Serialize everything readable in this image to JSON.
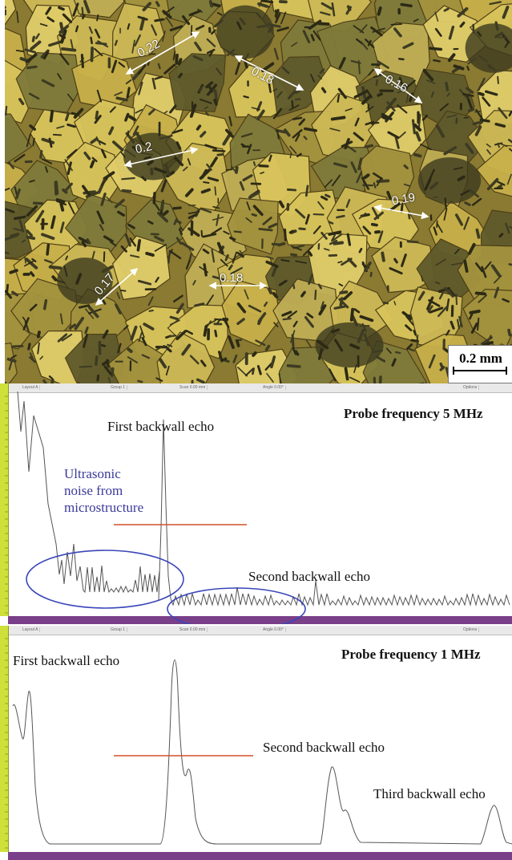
{
  "micrograph": {
    "measurements": [
      "0.22",
      "0.18",
      "0.16",
      "0.2",
      "0.19",
      "0.17",
      "0.18"
    ],
    "scale_bar_label": "0.2 mm"
  },
  "scope_5mhz": {
    "title": "Probe frequency 5 MHz",
    "first_echo": "First backwall echo",
    "second_echo": "Second backwall echo",
    "noise_line1": "Ultrasonic",
    "noise_line2": "noise from",
    "noise_line3": "microstructure",
    "toolbar": [
      "Layout A",
      "Group 1",
      "Scan 0.00 mm",
      "Angle 0.00°",
      "Options"
    ]
  },
  "scope_1mhz": {
    "title": "Probe frequency 1 MHz",
    "first_echo": "First backwall echo",
    "second_echo": "Second backwall echo",
    "third_echo": "Third backwall echo",
    "toolbar": [
      "Layout A",
      "Group 1",
      "Scan 0.00 mm",
      "Angle 0.00°",
      "Options"
    ]
  },
  "colors": {
    "grain_light": "#d8c35a",
    "grain_dark": "#3c3a1e",
    "ruler": "#cfe03a",
    "baseline": "#7a3f89",
    "gate_line": "#d2502a",
    "noise_ellipse": "#3a46b8"
  }
}
